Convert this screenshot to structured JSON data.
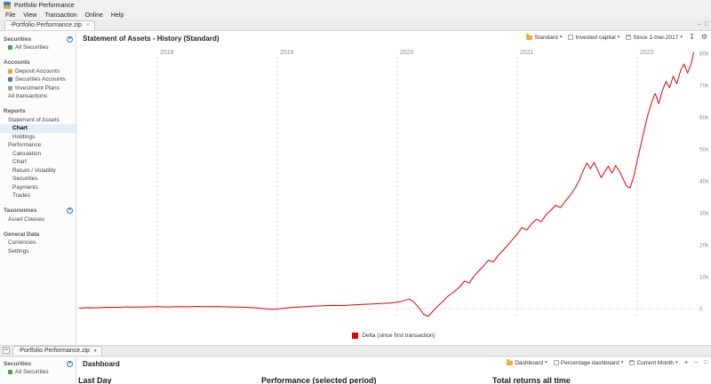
{
  "window": {
    "title": "Portfolio Performance"
  },
  "menubar": {
    "items": [
      "File",
      "View",
      "Transaction",
      "Online",
      "Help"
    ]
  },
  "editor_tabs": {
    "top": "-Portfolio Performance.zip",
    "bottom": "-Portfolio Performance.zip"
  },
  "icons": {
    "chevron_down": "▾",
    "close": "×",
    "plus": "+",
    "gear": "⚙",
    "export": "↧",
    "minimize": "–",
    "maximize": "□"
  },
  "sidebar": {
    "securities_header": "Securities",
    "all_securities": "All Securities",
    "accounts_header": "Accounts",
    "deposit_accounts": "Deposit Accounts",
    "securities_accounts": "Securities Accounts",
    "investment_plans": "Investment Plans",
    "all_transactions": "All transactions",
    "reports_header": "Reports",
    "statement_of_assets": "Statement of Assets",
    "soa_chart": "Chart",
    "holdings": "Holdings",
    "performance": "Performance",
    "calculation": "Calculation",
    "perf_chart": "Chart",
    "return_volatility": "Return / Volatility",
    "securities_report": "Securities",
    "payments": "Payments",
    "trades": "Trades",
    "taxonomies_header": "Taxonomies",
    "asset_classes": "Asset Classes",
    "general_data_header": "General Data",
    "currencies": "Currencies",
    "settings": "Settings"
  },
  "main": {
    "title": "Statement of Assets - History (Standard)",
    "toolbar": {
      "preset": "Standard",
      "series": "Invested capital",
      "period": "Since 1-mei-2017"
    },
    "legend": {
      "label": "Delta (since first transaction)",
      "color": "#e60000"
    }
  },
  "chart_data": {
    "type": "line",
    "title": "Statement of Assets - History (Standard)",
    "x_ticks": [
      2018,
      2019,
      2020,
      2021,
      2022
    ],
    "x_tick_labels": [
      "2018",
      "2019",
      "2020",
      "2021",
      "2022"
    ],
    "xlim": [
      2017.33,
      2022.52
    ],
    "y_tick_values": [
      0,
      10000,
      20000,
      30000,
      40000,
      50000,
      60000,
      70000,
      80000
    ],
    "y_tick_labels": [
      "0",
      "10k",
      "20k",
      "30k",
      "40k",
      "50k",
      "60k",
      "70k",
      "80k"
    ],
    "ylim": [
      -6000,
      84000
    ],
    "grid": "dashed-vertical-years",
    "legend_position": "bottom-center",
    "series": [
      {
        "name": "Delta (since first transaction)",
        "color": "#e60000",
        "points": [
          [
            2017.35,
            150
          ],
          [
            2017.42,
            300
          ],
          [
            2017.5,
            250
          ],
          [
            2017.58,
            420
          ],
          [
            2017.66,
            380
          ],
          [
            2017.75,
            520
          ],
          [
            2017.83,
            480
          ],
          [
            2017.92,
            560
          ],
          [
            2018.0,
            600
          ],
          [
            2018.08,
            520
          ],
          [
            2018.17,
            650
          ],
          [
            2018.25,
            580
          ],
          [
            2018.33,
            700
          ],
          [
            2018.42,
            620
          ],
          [
            2018.5,
            680
          ],
          [
            2018.58,
            560
          ],
          [
            2018.67,
            480
          ],
          [
            2018.75,
            380
          ],
          [
            2018.83,
            200
          ],
          [
            2018.9,
            -50
          ],
          [
            2018.96,
            -250
          ],
          [
            2019.04,
            80
          ],
          [
            2019.12,
            350
          ],
          [
            2019.21,
            550
          ],
          [
            2019.29,
            750
          ],
          [
            2019.37,
            850
          ],
          [
            2019.46,
            1000
          ],
          [
            2019.54,
            950
          ],
          [
            2019.62,
            1150
          ],
          [
            2019.71,
            1300
          ],
          [
            2019.79,
            1450
          ],
          [
            2019.87,
            1600
          ],
          [
            2019.96,
            1800
          ],
          [
            2020.04,
            2300
          ],
          [
            2020.1,
            3000
          ],
          [
            2020.14,
            2000
          ],
          [
            2020.18,
            300
          ],
          [
            2020.22,
            -1800
          ],
          [
            2020.26,
            -2400
          ],
          [
            2020.3,
            -700
          ],
          [
            2020.34,
            900
          ],
          [
            2020.38,
            2200
          ],
          [
            2020.42,
            3800
          ],
          [
            2020.47,
            5200
          ],
          [
            2020.52,
            6800
          ],
          [
            2020.56,
            8600
          ],
          [
            2020.6,
            8000
          ],
          [
            2020.64,
            10200
          ],
          [
            2020.68,
            11800
          ],
          [
            2020.72,
            13400
          ],
          [
            2020.76,
            15200
          ],
          [
            2020.8,
            14600
          ],
          [
            2020.84,
            16600
          ],
          [
            2020.88,
            18200
          ],
          [
            2020.92,
            19800
          ],
          [
            2020.96,
            21600
          ],
          [
            2021.0,
            23400
          ],
          [
            2021.04,
            25400
          ],
          [
            2021.08,
            24600
          ],
          [
            2021.12,
            26600
          ],
          [
            2021.16,
            28000
          ],
          [
            2021.2,
            27200
          ],
          [
            2021.24,
            29400
          ],
          [
            2021.28,
            30800
          ],
          [
            2021.32,
            32400
          ],
          [
            2021.36,
            31600
          ],
          [
            2021.4,
            33600
          ],
          [
            2021.44,
            35400
          ],
          [
            2021.48,
            37600
          ],
          [
            2021.52,
            40400
          ],
          [
            2021.55,
            43200
          ],
          [
            2021.58,
            45600
          ],
          [
            2021.61,
            43800
          ],
          [
            2021.64,
            45800
          ],
          [
            2021.67,
            43400
          ],
          [
            2021.7,
            41000
          ],
          [
            2021.73,
            43000
          ],
          [
            2021.76,
            44600
          ],
          [
            2021.79,
            42400
          ],
          [
            2021.82,
            44800
          ],
          [
            2021.85,
            43200
          ],
          [
            2021.88,
            40800
          ],
          [
            2021.91,
            38400
          ],
          [
            2021.94,
            37800
          ],
          [
            2021.97,
            41200
          ],
          [
            2022.0,
            46400
          ],
          [
            2022.03,
            51200
          ],
          [
            2022.06,
            56200
          ],
          [
            2022.09,
            60800
          ],
          [
            2022.12,
            64600
          ],
          [
            2022.15,
            67400
          ],
          [
            2022.18,
            64200
          ],
          [
            2022.21,
            68400
          ],
          [
            2022.24,
            71200
          ],
          [
            2022.27,
            69200
          ],
          [
            2022.3,
            72800
          ],
          [
            2022.33,
            70400
          ],
          [
            2022.36,
            74400
          ],
          [
            2022.39,
            76600
          ],
          [
            2022.42,
            73800
          ],
          [
            2022.45,
            76800
          ],
          [
            2022.47,
            80200
          ]
        ]
      }
    ]
  },
  "bottom": {
    "sidebar": {
      "securities_header": "Securities",
      "all_securities": "All Securities"
    },
    "title": "Dashboard",
    "toolbar": {
      "dashboard": "Dashboard",
      "layout": "Percentage dashboard",
      "period": "Current Month"
    },
    "widgets": [
      "Last Day",
      "Performance (selected period)",
      "Total returns all time"
    ]
  }
}
